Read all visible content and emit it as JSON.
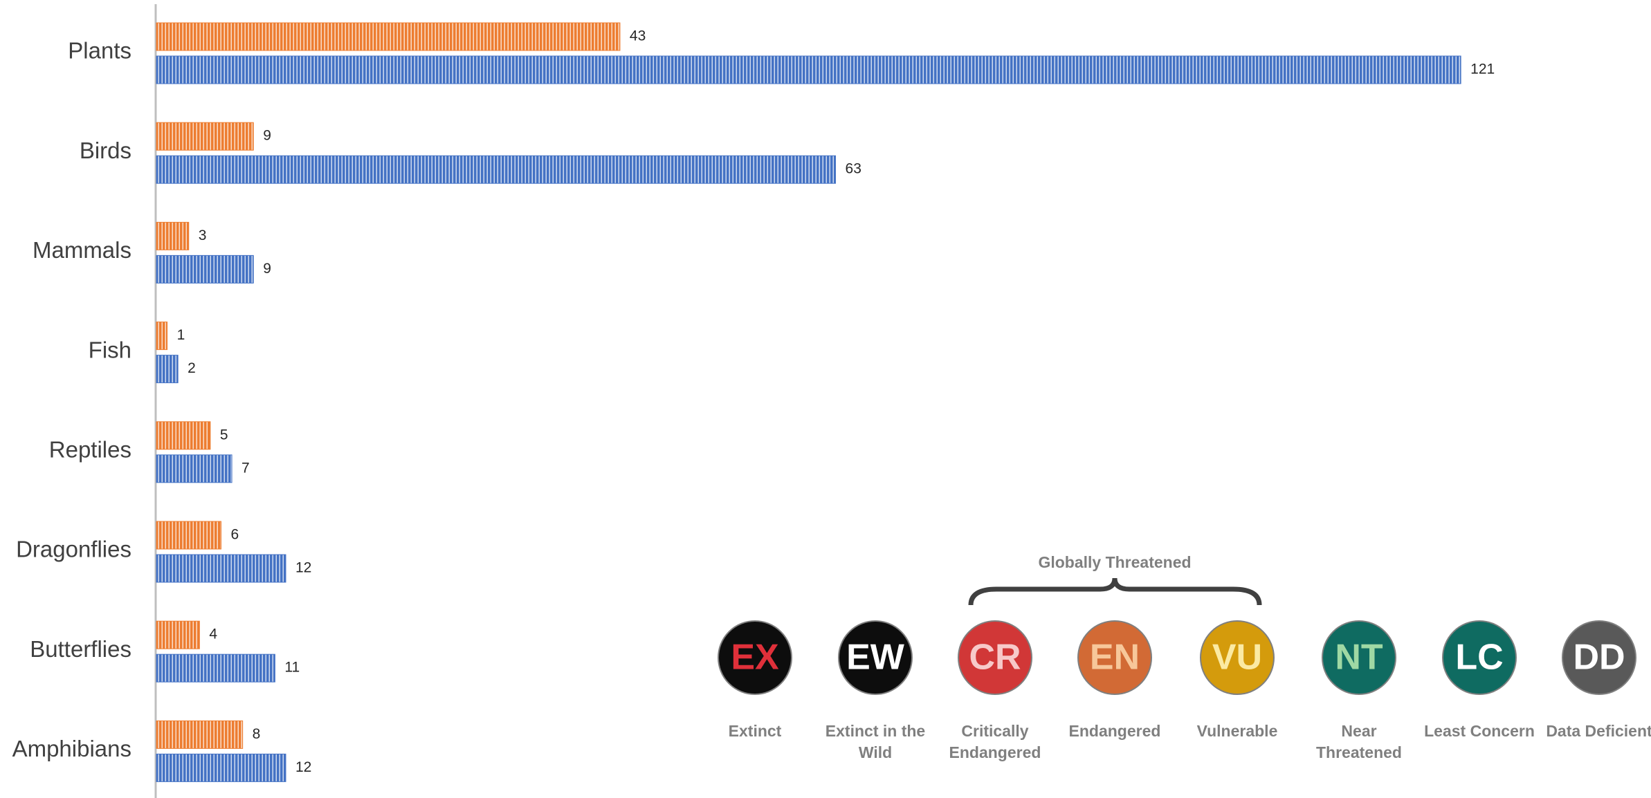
{
  "chart_data": {
    "type": "bar",
    "orientation": "horizontal",
    "categories": [
      "Plants",
      "Birds",
      "Mammals",
      "Fish",
      "Reptiles",
      "Dragonflies",
      "Butterflies",
      "Amphibians"
    ],
    "series": [
      {
        "color": "#ed7d31",
        "values": [
          43,
          9,
          3,
          1,
          5,
          6,
          4,
          8
        ]
      },
      {
        "color": "#4472c4",
        "values": [
          121,
          63,
          9,
          2,
          7,
          12,
          11,
          12
        ]
      }
    ],
    "xlim": [
      0,
      138
    ],
    "grid": false
  },
  "iucn_legend": {
    "title": "Globally Threatened",
    "items": [
      {
        "code": "EX",
        "label": "Extinct",
        "color": "#0d0d0d",
        "text_color": "#e0303a"
      },
      {
        "code": "EW",
        "label": "Extinct in the Wild",
        "color": "#0d0d0d",
        "text_color": "#ffffff"
      },
      {
        "code": "CR",
        "label": "Critically Endangered",
        "color": "#d13737",
        "text_color": "#f7c9c9"
      },
      {
        "code": "EN",
        "label": "Endangered",
        "color": "#d26a35",
        "text_color": "#f7c79a"
      },
      {
        "code": "VU",
        "label": "Vulnerable",
        "color": "#d49b0c",
        "text_color": "#fbeaa3"
      },
      {
        "code": "NT",
        "label": "Near Threatened",
        "color": "#0f6b61",
        "text_color": "#9fd8a4"
      },
      {
        "code": "LC",
        "label": "Least Concern",
        "color": "#0f6b61",
        "text_color": "#ffffff"
      },
      {
        "code": "DD",
        "label": "Data Deficient",
        "color": "#595959",
        "text_color": "#ffffff"
      }
    ]
  }
}
